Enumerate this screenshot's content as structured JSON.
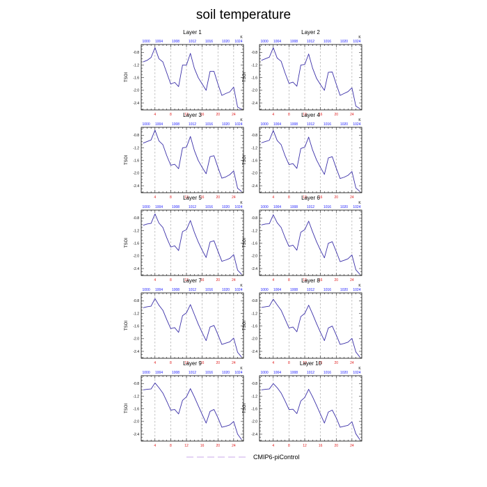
{
  "figure": {
    "title": "soil temperature",
    "legend": {
      "label": "CMIP6-piControl",
      "line_color": "#c9a8e8",
      "line_style": "dashed"
    }
  },
  "colors": {
    "series_line": "#3a2fa8",
    "top_axis_labels": "#1a1aff",
    "bottom_axis_labels": "#e02020",
    "vertical_guides": "#999999"
  },
  "chart_data": [
    {
      "type": "line",
      "title": "Layer 1",
      "ylabel": "TSOI",
      "top_axis_unit": "K",
      "top_ticks": [
        1000,
        1004,
        1008,
        1012,
        1016,
        1020,
        1024
      ],
      "bottom_ticks": [
        4,
        8,
        12,
        16,
        20,
        24
      ],
      "y_ticks": [
        -0.8,
        -1.2,
        -1.6,
        -2.0,
        -2.4
      ],
      "xlim": [
        0.5,
        26.5
      ],
      "ylim": [
        -2.62,
        -0.55
      ],
      "guide_lines": [
        4,
        8,
        12,
        16,
        20,
        24
      ],
      "series": [
        {
          "x": [
            1,
            2,
            3,
            4,
            5,
            6,
            7,
            8,
            9,
            10,
            11,
            12,
            13,
            14,
            15,
            16,
            17,
            18,
            19,
            20,
            21,
            22,
            23,
            24,
            25,
            26
          ],
          "y": [
            -1.1,
            -1.05,
            -0.96,
            -0.65,
            -1.0,
            -1.1,
            -1.45,
            -1.8,
            -1.75,
            -1.88,
            -1.2,
            -1.2,
            -0.83,
            -1.3,
            -1.6,
            -1.8,
            -2.0,
            -1.4,
            -1.4,
            -1.8,
            -2.16,
            -2.1,
            -2.05,
            -1.9,
            -2.53,
            -2.6
          ]
        }
      ]
    },
    {
      "type": "line",
      "title": "Layer 2",
      "ylabel": "TSOI",
      "top_axis_unit": "K",
      "top_ticks": [
        1000,
        1004,
        1008,
        1012,
        1016,
        1020,
        1024
      ],
      "bottom_ticks": [
        4,
        8,
        12,
        16,
        20,
        24
      ],
      "y_ticks": [
        -0.8,
        -1.2,
        -1.6,
        -2.0,
        -2.4
      ],
      "xlim": [
        0.5,
        26.5
      ],
      "ylim": [
        -2.62,
        -0.55
      ],
      "guide_lines": [
        4,
        8,
        12,
        16,
        20,
        24
      ],
      "series": [
        {
          "x": [
            1,
            2,
            3,
            4,
            5,
            6,
            7,
            8,
            9,
            10,
            11,
            12,
            13,
            14,
            15,
            16,
            17,
            18,
            19,
            20,
            21,
            22,
            23,
            24,
            25,
            26
          ],
          "y": [
            -1.05,
            -1.0,
            -0.95,
            -0.65,
            -0.98,
            -1.08,
            -1.45,
            -1.78,
            -1.74,
            -1.87,
            -1.2,
            -1.18,
            -0.85,
            -1.3,
            -1.62,
            -1.82,
            -2.0,
            -1.43,
            -1.42,
            -1.8,
            -2.16,
            -2.1,
            -2.04,
            -1.92,
            -2.5,
            -2.58
          ]
        }
      ]
    },
    {
      "type": "line",
      "title": "Layer 3",
      "ylabel": "TSOI",
      "top_axis_unit": "K",
      "top_ticks": [
        1000,
        1004,
        1008,
        1012,
        1016,
        1020,
        1024
      ],
      "bottom_ticks": [
        4,
        8,
        12,
        16,
        20,
        24
      ],
      "y_ticks": [
        -0.8,
        -1.2,
        -1.6,
        -2.0,
        -2.4
      ],
      "xlim": [
        0.5,
        26.5
      ],
      "ylim": [
        -2.62,
        -0.55
      ],
      "guide_lines": [
        4,
        8,
        12,
        16,
        20,
        24
      ],
      "series": [
        {
          "x": [
            1,
            2,
            3,
            4,
            5,
            6,
            7,
            8,
            9,
            10,
            11,
            12,
            13,
            14,
            15,
            16,
            17,
            18,
            19,
            20,
            21,
            22,
            23,
            24,
            25,
            26
          ],
          "y": [
            -1.05,
            -1.0,
            -0.95,
            -0.64,
            -0.98,
            -1.1,
            -1.45,
            -1.75,
            -1.72,
            -1.86,
            -1.2,
            -1.18,
            -0.84,
            -1.28,
            -1.6,
            -1.82,
            -2.02,
            -1.48,
            -1.45,
            -1.82,
            -2.16,
            -2.12,
            -2.05,
            -1.93,
            -2.48,
            -2.58
          ]
        }
      ]
    },
    {
      "type": "line",
      "title": "Layer 4",
      "ylabel": "TSOI",
      "top_axis_unit": "K",
      "top_ticks": [
        1000,
        1004,
        1008,
        1012,
        1016,
        1020,
        1024
      ],
      "bottom_ticks": [
        4,
        8,
        12,
        16,
        20,
        24
      ],
      "y_ticks": [
        -0.8,
        -1.2,
        -1.6,
        -2.0,
        -2.4
      ],
      "xlim": [
        0.5,
        26.5
      ],
      "ylim": [
        -2.62,
        -0.55
      ],
      "guide_lines": [
        4,
        8,
        12,
        16,
        20,
        24
      ],
      "series": [
        {
          "x": [
            1,
            2,
            3,
            4,
            5,
            6,
            7,
            8,
            9,
            10,
            11,
            12,
            13,
            14,
            15,
            16,
            17,
            18,
            19,
            20,
            21,
            22,
            23,
            24,
            25,
            26
          ],
          "y": [
            -1.04,
            -1.0,
            -0.96,
            -0.65,
            -0.97,
            -1.1,
            -1.45,
            -1.73,
            -1.7,
            -1.85,
            -1.22,
            -1.18,
            -0.86,
            -1.27,
            -1.58,
            -1.82,
            -2.04,
            -1.52,
            -1.48,
            -1.84,
            -2.17,
            -2.13,
            -2.07,
            -1.95,
            -2.47,
            -2.58
          ]
        }
      ]
    },
    {
      "type": "line",
      "title": "Layer 5",
      "ylabel": "TSOI",
      "top_axis_unit": "K",
      "top_ticks": [
        1000,
        1004,
        1008,
        1012,
        1016,
        1020,
        1024
      ],
      "bottom_ticks": [
        4,
        8,
        12,
        16,
        20,
        24
      ],
      "y_ticks": [
        -0.8,
        -1.2,
        -1.6,
        -2.0,
        -2.4
      ],
      "xlim": [
        0.5,
        26.5
      ],
      "ylim": [
        -2.62,
        -0.55
      ],
      "guide_lines": [
        4,
        8,
        12,
        16,
        20,
        24
      ],
      "series": [
        {
          "x": [
            1,
            2,
            3,
            4,
            5,
            6,
            7,
            8,
            9,
            10,
            11,
            12,
            13,
            14,
            15,
            16,
            17,
            18,
            19,
            20,
            21,
            22,
            23,
            24,
            25,
            26
          ],
          "y": [
            -1.03,
            -0.99,
            -0.97,
            -0.67,
            -0.96,
            -1.1,
            -1.43,
            -1.72,
            -1.68,
            -1.83,
            -1.23,
            -1.17,
            -0.88,
            -1.25,
            -1.56,
            -1.82,
            -2.05,
            -1.56,
            -1.52,
            -1.85,
            -2.17,
            -2.13,
            -2.08,
            -1.96,
            -2.45,
            -2.58
          ]
        }
      ]
    },
    {
      "type": "line",
      "title": "Layer 6",
      "ylabel": "TSOI",
      "top_axis_unit": "K",
      "top_ticks": [
        1000,
        1004,
        1008,
        1012,
        1016,
        1020,
        1024
      ],
      "bottom_ticks": [
        4,
        8,
        12,
        16,
        20,
        24
      ],
      "y_ticks": [
        -0.8,
        -1.2,
        -1.6,
        -2.0,
        -2.4
      ],
      "xlim": [
        0.5,
        26.5
      ],
      "ylim": [
        -2.62,
        -0.55
      ],
      "guide_lines": [
        4,
        8,
        12,
        16,
        20,
        24
      ],
      "series": [
        {
          "x": [
            1,
            2,
            3,
            4,
            5,
            6,
            7,
            8,
            9,
            10,
            11,
            12,
            13,
            14,
            15,
            16,
            17,
            18,
            19,
            20,
            21,
            22,
            23,
            24,
            25,
            26
          ],
          "y": [
            -1.02,
            -0.99,
            -0.98,
            -0.7,
            -0.95,
            -1.1,
            -1.42,
            -1.7,
            -1.66,
            -1.82,
            -1.25,
            -1.17,
            -0.9,
            -1.24,
            -1.55,
            -1.82,
            -2.06,
            -1.6,
            -1.55,
            -1.86,
            -2.18,
            -2.14,
            -2.09,
            -1.97,
            -2.44,
            -2.58
          ]
        }
      ]
    },
    {
      "type": "line",
      "title": "Layer 7",
      "ylabel": "TSOI",
      "top_axis_unit": "K",
      "top_ticks": [
        1000,
        1004,
        1008,
        1012,
        1016,
        1020,
        1024
      ],
      "bottom_ticks": [
        4,
        8,
        12,
        16,
        20,
        24
      ],
      "y_ticks": [
        -0.8,
        -1.2,
        -1.6,
        -2.0,
        -2.4
      ],
      "xlim": [
        0.5,
        26.5
      ],
      "ylim": [
        -2.62,
        -0.55
      ],
      "guide_lines": [
        4,
        8,
        12,
        16,
        20,
        24
      ],
      "series": [
        {
          "x": [
            1,
            2,
            3,
            4,
            5,
            6,
            7,
            8,
            9,
            10,
            11,
            12,
            13,
            14,
            15,
            16,
            17,
            18,
            19,
            20,
            21,
            22,
            23,
            24,
            25,
            26
          ],
          "y": [
            -1.02,
            -0.99,
            -0.97,
            -0.73,
            -0.94,
            -1.1,
            -1.4,
            -1.68,
            -1.65,
            -1.8,
            -1.27,
            -1.18,
            -0.92,
            -1.23,
            -1.54,
            -1.81,
            -2.06,
            -1.63,
            -1.58,
            -1.87,
            -2.18,
            -2.14,
            -2.1,
            -1.98,
            -2.43,
            -2.58
          ]
        }
      ]
    },
    {
      "type": "line",
      "title": "Layer 8",
      "ylabel": "TSOI",
      "top_axis_unit": "K",
      "top_ticks": [
        1000,
        1004,
        1008,
        1012,
        1016,
        1020,
        1024
      ],
      "bottom_ticks": [
        4,
        8,
        12,
        16,
        20,
        24
      ],
      "y_ticks": [
        -0.8,
        -1.2,
        -1.6,
        -2.0,
        -2.4
      ],
      "xlim": [
        0.5,
        26.5
      ],
      "ylim": [
        -2.62,
        -0.55
      ],
      "guide_lines": [
        4,
        8,
        12,
        16,
        20,
        24
      ],
      "series": [
        {
          "x": [
            1,
            2,
            3,
            4,
            5,
            6,
            7,
            8,
            9,
            10,
            11,
            12,
            13,
            14,
            15,
            16,
            17,
            18,
            19,
            20,
            21,
            22,
            23,
            24,
            25,
            26
          ],
          "y": [
            -1.01,
            -0.99,
            -0.97,
            -0.75,
            -0.93,
            -1.1,
            -1.38,
            -1.66,
            -1.63,
            -1.78,
            -1.3,
            -1.2,
            -0.94,
            -1.22,
            -1.52,
            -1.8,
            -2.06,
            -1.66,
            -1.6,
            -1.88,
            -2.18,
            -2.15,
            -2.11,
            -1.99,
            -2.42,
            -2.58
          ]
        }
      ]
    },
    {
      "type": "line",
      "title": "Layer 9",
      "ylabel": "TSOI",
      "top_axis_unit": "K",
      "top_ticks": [
        1000,
        1004,
        1008,
        1012,
        1016,
        1020,
        1024
      ],
      "bottom_ticks": [
        4,
        8,
        12,
        16,
        20,
        24
      ],
      "y_ticks": [
        -0.8,
        -1.2,
        -1.6,
        -2.0,
        -2.4
      ],
      "xlim": [
        0.5,
        26.5
      ],
      "ylim": [
        -2.62,
        -0.55
      ],
      "guide_lines": [
        4,
        8,
        12,
        16,
        20,
        24
      ],
      "series": [
        {
          "x": [
            1,
            2,
            3,
            4,
            5,
            6,
            7,
            8,
            9,
            10,
            11,
            12,
            13,
            14,
            15,
            16,
            17,
            18,
            19,
            20,
            21,
            22,
            23,
            24,
            25,
            26
          ],
          "y": [
            -1.0,
            -0.98,
            -0.97,
            -0.78,
            -0.93,
            -1.1,
            -1.36,
            -1.64,
            -1.62,
            -1.76,
            -1.33,
            -1.22,
            -0.96,
            -1.22,
            -1.5,
            -1.78,
            -2.05,
            -1.68,
            -1.62,
            -1.88,
            -2.18,
            -2.15,
            -2.11,
            -2.0,
            -2.4,
            -2.57
          ]
        }
      ]
    },
    {
      "type": "line",
      "title": "Layer 10",
      "ylabel": "TSOI",
      "top_axis_unit": "K",
      "top_ticks": [
        1000,
        1004,
        1008,
        1012,
        1016,
        1020,
        1024
      ],
      "bottom_ticks": [
        4,
        8,
        12,
        16,
        20,
        24
      ],
      "y_ticks": [
        -0.8,
        -1.2,
        -1.6,
        -2.0,
        -2.4
      ],
      "xlim": [
        0.5,
        26.5
      ],
      "ylim": [
        -2.62,
        -0.55
      ],
      "guide_lines": [
        4,
        8,
        12,
        16,
        20,
        24
      ],
      "series": [
        {
          "x": [
            1,
            2,
            3,
            4,
            5,
            6,
            7,
            8,
            9,
            10,
            11,
            12,
            13,
            14,
            15,
            16,
            17,
            18,
            19,
            20,
            21,
            22,
            23,
            24,
            25,
            26
          ],
          "y": [
            -1.0,
            -0.98,
            -0.97,
            -0.8,
            -0.93,
            -1.1,
            -1.35,
            -1.62,
            -1.61,
            -1.75,
            -1.35,
            -1.24,
            -0.98,
            -1.22,
            -1.49,
            -1.77,
            -2.05,
            -1.7,
            -1.64,
            -1.88,
            -2.18,
            -2.15,
            -2.12,
            -2.01,
            -2.39,
            -2.57
          ]
        }
      ]
    }
  ]
}
